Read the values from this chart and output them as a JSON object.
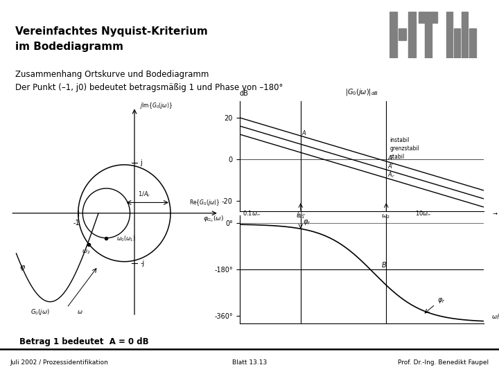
{
  "title_line1": "Vereinfachtes Nyquist-Kriterium",
  "title_line2": "im Bodediagramm",
  "subtitle_line1": "Zusammenhang Ortskurve und Bodediagramm",
  "subtitle_line2": "Der Punkt (–1, j0) bedeutet betragsmäßig 1 und Phase von –180°",
  "footer_left": "Juli 2002 / Prozessidentifikation",
  "footer_center": "Blatt 13.13",
  "footer_right": "Prof. Dr.-Ing. Benedikt Faupel",
  "betrag_text": "Betrag 1 bedeutet  A = 0 dB",
  "bg_color": "#ffffff",
  "title_color": "#000000"
}
